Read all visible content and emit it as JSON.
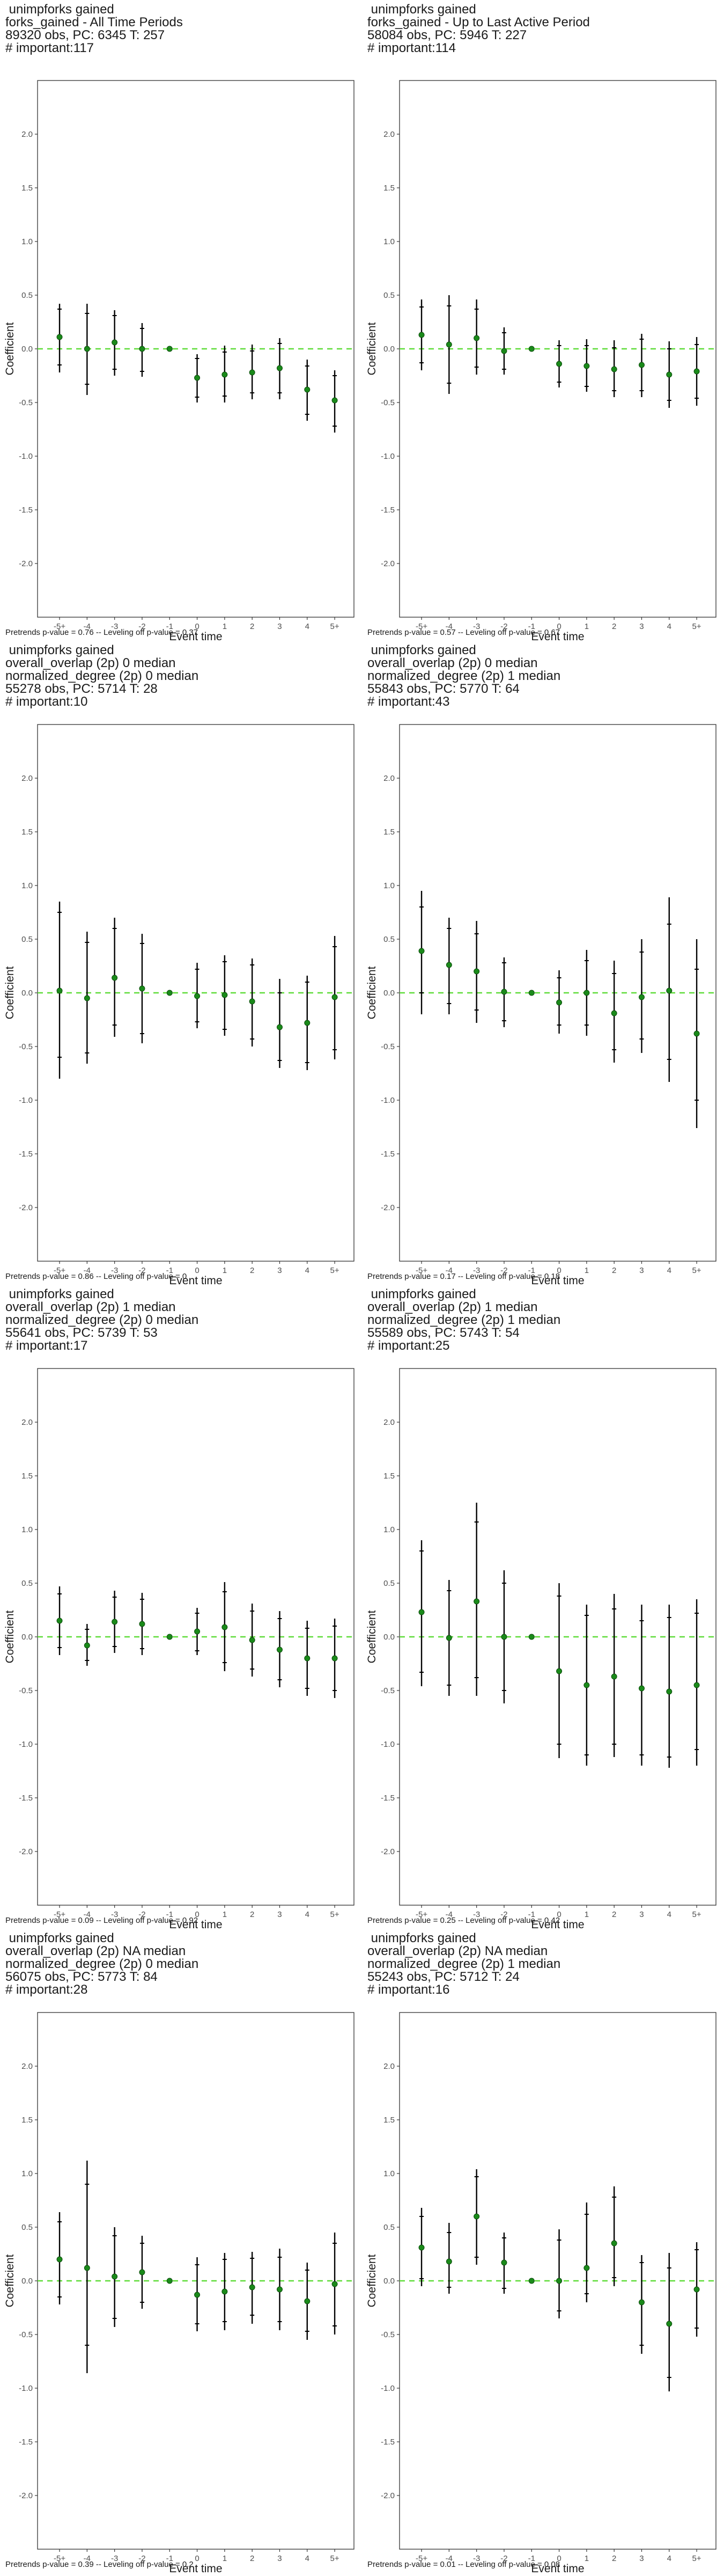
{
  "colors": {
    "point": "#1a8a1a",
    "zero_line": "#5fdc3a",
    "bar": "#000000",
    "axis_text": "#4d4d4d"
  },
  "panels": [
    {
      "title_lines": [
        " unimpforks gained",
        "forks_gained - All Time Periods",
        "89320 obs, PC: 6345 T: 257",
        "# important:117"
      ],
      "footer": "Pretrends p-value = 0.76 -- Leveling off p-value = 0.37"
    },
    {
      "title_lines": [
        " unimpforks gained",
        "forks_gained - Up to Last Active Period",
        "58084 obs, PC: 5946 T: 227",
        "# important:114"
      ],
      "footer": "Pretrends p-value = 0.57 -- Leveling off p-value = 0.67"
    },
    {
      "title_lines": [
        " unimpforks gained",
        "overall_overlap (2p) 0 median",
        "normalized_degree (2p) 0 median",
        "55278 obs, PC: 5714 T: 28",
        "# important:10"
      ],
      "footer": "Pretrends p-value = 0.86 -- Leveling off p-value = 0"
    },
    {
      "title_lines": [
        " unimpforks gained",
        "overall_overlap (2p) 0 median",
        "normalized_degree (2p) 1 median",
        "55843 obs, PC: 5770 T: 64",
        "# important:43"
      ],
      "footer": "Pretrends p-value = 0.17 -- Leveling off p-value = 0.18"
    },
    {
      "title_lines": [
        " unimpforks gained",
        "overall_overlap (2p) 1 median",
        "normalized_degree (2p) 0 median",
        "55641 obs, PC: 5739 T: 53",
        "# important:17"
      ],
      "footer": "Pretrends p-value = 0.09 -- Leveling off p-value = 0.92"
    },
    {
      "title_lines": [
        " unimpforks gained",
        "overall_overlap (2p) 1 median",
        "normalized_degree (2p) 1 median",
        "55589 obs, PC: 5743 T: 54",
        "# important:25"
      ],
      "footer": "Pretrends p-value = 0.25 -- Leveling off p-value = 0.42"
    },
    {
      "title_lines": [
        " unimpforks gained",
        "overall_overlap (2p) NA median",
        "normalized_degree (2p) 0 median",
        "56075 obs, PC: 5773 T: 84",
        "# important:28"
      ],
      "footer": "Pretrends p-value = 0.39 -- Leveling off p-value = 0.2"
    },
    {
      "title_lines": [
        " unimpforks gained",
        "overall_overlap (2p) NA median",
        "normalized_degree (2p) 1 median",
        "55243 obs, PC: 5712 T: 24",
        "# important:16"
      ],
      "footer": "Pretrends p-value = 0.01 -- Leveling off p-value = 0.08"
    }
  ],
  "chart_data": [
    {
      "type": "scatter",
      "title": "forks_gained - All Time Periods",
      "xlabel": "Event time",
      "ylabel": "Coefficient",
      "categories": [
        "-5+",
        "-4",
        "-3",
        "-2",
        "-1",
        "0",
        "1",
        "2",
        "3",
        "4",
        "5+"
      ],
      "ylim": [
        -2.5,
        2.5
      ],
      "y_ticks": [
        "2.0",
        "1.5",
        "1.0",
        "0.5",
        "0.0",
        "-0.5",
        "-1.0",
        "-1.5",
        "-2.0"
      ],
      "values": [
        0.11,
        0.0,
        0.06,
        0.0,
        0.0,
        -0.27,
        -0.24,
        -0.22,
        -0.18,
        -0.38,
        -0.48
      ],
      "ci95_low": [
        -0.22,
        -0.43,
        -0.25,
        -0.26,
        0.0,
        -0.5,
        -0.5,
        -0.47,
        -0.47,
        -0.67,
        -0.78
      ],
      "ci95_high": [
        0.42,
        0.42,
        0.36,
        0.24,
        0.0,
        -0.05,
        0.03,
        0.04,
        0.1,
        -0.1,
        -0.2
      ],
      "ci90_low": [
        -0.15,
        -0.33,
        -0.19,
        -0.21,
        0.0,
        -0.45,
        -0.44,
        -0.41,
        -0.41,
        -0.61,
        -0.72
      ],
      "ci90_high": [
        0.37,
        0.33,
        0.31,
        0.19,
        0.0,
        -0.09,
        -0.03,
        -0.02,
        0.05,
        -0.16,
        -0.25
      ],
      "zero_line": 0.0
    },
    {
      "type": "scatter",
      "title": "forks_gained - Up to Last Active Period",
      "xlabel": "Event time",
      "ylabel": "Coefficient",
      "categories": [
        "-5+",
        "-4",
        "-3",
        "-2",
        "-1",
        "0",
        "1",
        "2",
        "3",
        "4",
        "5+"
      ],
      "ylim": [
        -2.5,
        2.5
      ],
      "y_ticks": [
        "2.0",
        "1.5",
        "1.0",
        "0.5",
        "0.0",
        "-0.5",
        "-1.0",
        "-1.5",
        "-2.0"
      ],
      "values": [
        0.13,
        0.04,
        0.1,
        -0.02,
        0.0,
        -0.14,
        -0.16,
        -0.19,
        -0.15,
        -0.24,
        -0.21
      ],
      "ci95_low": [
        -0.2,
        -0.42,
        -0.24,
        -0.24,
        0.0,
        -0.36,
        -0.4,
        -0.45,
        -0.45,
        -0.55,
        -0.53
      ],
      "ci95_high": [
        0.46,
        0.5,
        0.46,
        0.2,
        0.0,
        0.08,
        0.09,
        0.08,
        0.14,
        0.07,
        0.11
      ],
      "ci90_low": [
        -0.13,
        -0.32,
        -0.17,
        -0.19,
        0.0,
        -0.31,
        -0.35,
        -0.39,
        -0.39,
        -0.48,
        -0.46
      ],
      "ci90_high": [
        0.39,
        0.4,
        0.37,
        0.15,
        0.0,
        0.03,
        0.03,
        0.01,
        0.09,
        0.0,
        0.04
      ],
      "zero_line": 0.0
    },
    {
      "type": "scatter",
      "title": "overall_overlap (2p) 0 median / normalized_degree (2p) 0 median",
      "xlabel": "Event time",
      "ylabel": "Coefficient",
      "categories": [
        "-5+",
        "-4",
        "-3",
        "-2",
        "-1",
        "0",
        "1",
        "2",
        "3",
        "4",
        "5+"
      ],
      "ylim": [
        -2.5,
        2.5
      ],
      "y_ticks": [
        "2.0",
        "1.5",
        "1.0",
        "0.5",
        "0.0",
        "-0.5",
        "-1.0",
        "-1.5",
        "-2.0"
      ],
      "values": [
        0.02,
        -0.05,
        0.14,
        0.04,
        0.0,
        -0.03,
        -0.02,
        -0.08,
        -0.32,
        -0.28,
        -0.04
      ],
      "ci95_low": [
        -0.8,
        -0.66,
        -0.41,
        -0.47,
        0.0,
        -0.33,
        -0.4,
        -0.5,
        -0.7,
        -0.72,
        -0.62
      ],
      "ci95_high": [
        0.85,
        0.57,
        0.7,
        0.55,
        0.0,
        0.28,
        0.35,
        0.32,
        0.13,
        0.16,
        0.53
      ],
      "ci90_low": [
        -0.6,
        -0.56,
        -0.3,
        -0.38,
        0.0,
        -0.27,
        -0.34,
        -0.43,
        -0.63,
        -0.65,
        -0.53
      ],
      "ci90_high": [
        0.75,
        0.47,
        0.6,
        0.46,
        0.0,
        0.22,
        0.29,
        0.26,
        0.0,
        0.1,
        0.43
      ],
      "zero_line": 0.0
    },
    {
      "type": "scatter",
      "title": "overall_overlap (2p) 0 median / normalized_degree (2p) 1 median",
      "xlabel": "Event time",
      "ylabel": "Coefficient",
      "categories": [
        "-5+",
        "-4",
        "-3",
        "-2",
        "-1",
        "0",
        "1",
        "2",
        "3",
        "4",
        "5+"
      ],
      "ylim": [
        -2.5,
        2.5
      ],
      "y_ticks": [
        "2.0",
        "1.5",
        "1.0",
        "0.5",
        "0.0",
        "-0.5",
        "-1.0",
        "-1.5",
        "-2.0"
      ],
      "values": [
        0.39,
        0.26,
        0.2,
        0.01,
        0.0,
        -0.09,
        0.0,
        -0.19,
        -0.04,
        0.02,
        -0.38
      ],
      "ci95_low": [
        -0.2,
        -0.2,
        -0.28,
        -0.32,
        0.0,
        -0.38,
        -0.4,
        -0.65,
        -0.56,
        -0.83,
        -1.26
      ],
      "ci95_high": [
        0.95,
        0.7,
        0.67,
        0.33,
        0.0,
        0.21,
        0.4,
        0.3,
        0.5,
        0.89,
        0.5
      ],
      "ci90_low": [
        0.0,
        -0.1,
        -0.16,
        -0.26,
        0.0,
        -0.3,
        -0.3,
        -0.53,
        -0.43,
        -0.62,
        -1.0
      ],
      "ci90_high": [
        0.8,
        0.6,
        0.55,
        0.28,
        0.0,
        0.14,
        0.3,
        0.18,
        0.38,
        0.64,
        0.22
      ],
      "zero_line": 0.0
    },
    {
      "type": "scatter",
      "title": "overall_overlap (2p) 1 median / normalized_degree (2p) 0 median",
      "xlabel": "Event time",
      "ylabel": "Coefficient",
      "categories": [
        "-5+",
        "-4",
        "-3",
        "-2",
        "-1",
        "0",
        "1",
        "2",
        "3",
        "4",
        "5+"
      ],
      "ylim": [
        -2.5,
        2.5
      ],
      "y_ticks": [
        "2.0",
        "1.5",
        "1.0",
        "0.5",
        "0.0",
        "-0.5",
        "-1.0",
        "-1.5",
        "-2.0"
      ],
      "values": [
        0.15,
        -0.08,
        0.14,
        0.12,
        0.0,
        0.05,
        0.09,
        -0.03,
        -0.12,
        -0.2,
        -0.2
      ],
      "ci95_low": [
        -0.17,
        -0.27,
        -0.15,
        -0.17,
        0.0,
        -0.17,
        -0.32,
        -0.37,
        -0.47,
        -0.55,
        -0.57
      ],
      "ci95_high": [
        0.47,
        0.12,
        0.43,
        0.41,
        0.0,
        0.27,
        0.51,
        0.31,
        0.24,
        0.15,
        0.17
      ],
      "ci90_low": [
        -0.1,
        -0.22,
        -0.09,
        -0.11,
        0.0,
        -0.13,
        -0.24,
        -0.3,
        -0.4,
        -0.48,
        -0.5
      ],
      "ci90_high": [
        0.4,
        0.07,
        0.37,
        0.35,
        0.0,
        0.22,
        0.42,
        0.24,
        0.17,
        0.08,
        0.1
      ],
      "zero_line": 0.0
    },
    {
      "type": "scatter",
      "title": "overall_overlap (2p) 1 median / normalized_degree (2p) 1 median",
      "xlabel": "Event time",
      "ylabel": "Coefficient",
      "categories": [
        "-5+",
        "-4",
        "-3",
        "-2",
        "-1",
        "0",
        "1",
        "2",
        "3",
        "4",
        "5+"
      ],
      "ylim": [
        -2.5,
        2.5
      ],
      "y_ticks": [
        "2.0",
        "1.5",
        "1.0",
        "0.5",
        "0.0",
        "-0.5",
        "-1.0",
        "-1.5",
        "-2.0"
      ],
      "values": [
        0.23,
        -0.01,
        0.33,
        0.0,
        0.0,
        -0.32,
        -0.45,
        -0.37,
        -0.48,
        -0.51,
        -0.45
      ],
      "ci95_low": [
        -0.46,
        -0.55,
        -0.55,
        -0.62,
        0.0,
        -1.13,
        -1.2,
        -1.12,
        -1.2,
        -1.22,
        -1.2
      ],
      "ci95_high": [
        0.9,
        0.53,
        1.25,
        0.62,
        0.0,
        0.5,
        0.3,
        0.4,
        0.3,
        0.3,
        0.35
      ],
      "ci90_low": [
        -0.33,
        -0.45,
        -0.38,
        -0.5,
        0.0,
        -1.0,
        -1.1,
        -1.0,
        -1.1,
        -1.12,
        -1.05
      ],
      "ci90_high": [
        0.8,
        0.43,
        1.07,
        0.5,
        0.0,
        0.38,
        0.2,
        0.26,
        0.15,
        0.18,
        0.22
      ],
      "zero_line": 0.0
    },
    {
      "type": "scatter",
      "title": "overall_overlap (2p) NA median / normalized_degree (2p) 0 median",
      "xlabel": "Event time",
      "ylabel": "Coefficient",
      "categories": [
        "-5+",
        "-4",
        "-3",
        "-2",
        "-1",
        "0",
        "1",
        "2",
        "3",
        "4",
        "5+"
      ],
      "ylim": [
        -2.5,
        2.5
      ],
      "y_ticks": [
        "2.0",
        "1.5",
        "1.0",
        "0.5",
        "0.0",
        "-0.5",
        "-1.0",
        "-1.5",
        "-2.0"
      ],
      "values": [
        0.2,
        0.12,
        0.04,
        0.08,
        0.0,
        -0.13,
        -0.1,
        -0.06,
        -0.08,
        -0.19,
        -0.03
      ],
      "ci95_low": [
        -0.22,
        -0.86,
        -0.43,
        -0.26,
        0.0,
        -0.47,
        -0.46,
        -0.4,
        -0.46,
        -0.55,
        -0.5
      ],
      "ci95_high": [
        0.64,
        1.12,
        0.5,
        0.42,
        0.0,
        0.22,
        0.26,
        0.27,
        0.3,
        0.17,
        0.45
      ],
      "ci90_low": [
        -0.15,
        -0.6,
        -0.35,
        -0.2,
        0.0,
        -0.4,
        -0.38,
        -0.32,
        -0.38,
        -0.47,
        -0.42
      ],
      "ci90_high": [
        0.55,
        0.9,
        0.42,
        0.35,
        0.0,
        0.15,
        0.2,
        0.21,
        0.22,
        0.1,
        0.35
      ],
      "zero_line": 0.0
    },
    {
      "type": "scatter",
      "title": "overall_overlap (2p) NA median / normalized_degree (2p) 1 median",
      "xlabel": "Event time",
      "ylabel": "Coefficient",
      "categories": [
        "-5+",
        "-4",
        "-3",
        "-2",
        "-1",
        "0",
        "1",
        "2",
        "3",
        "4",
        "5+"
      ],
      "ylim": [
        -2.5,
        2.5
      ],
      "y_ticks": [
        "2.0",
        "1.5",
        "1.0",
        "0.5",
        "0.0",
        "-0.5",
        "-1.0",
        "-1.5",
        "-2.0"
      ],
      "values": [
        0.31,
        0.18,
        0.6,
        0.17,
        0.0,
        0.0,
        0.12,
        0.35,
        -0.2,
        -0.4,
        -0.08
      ],
      "ci95_low": [
        -0.05,
        -0.12,
        0.15,
        -0.12,
        0.0,
        -0.35,
        -0.2,
        -0.05,
        -0.68,
        -1.03,
        -0.52
      ],
      "ci95_high": [
        0.68,
        0.54,
        1.04,
        0.45,
        0.0,
        0.48,
        0.73,
        0.88,
        0.24,
        0.26,
        0.36
      ],
      "ci90_low": [
        0.02,
        -0.06,
        0.22,
        -0.07,
        0.0,
        -0.28,
        -0.12,
        0.03,
        -0.6,
        -0.9,
        -0.44
      ],
      "ci90_high": [
        0.6,
        0.45,
        0.97,
        0.4,
        0.0,
        0.38,
        0.62,
        0.78,
        0.17,
        0.12,
        0.29
      ],
      "zero_line": 0.0
    }
  ]
}
